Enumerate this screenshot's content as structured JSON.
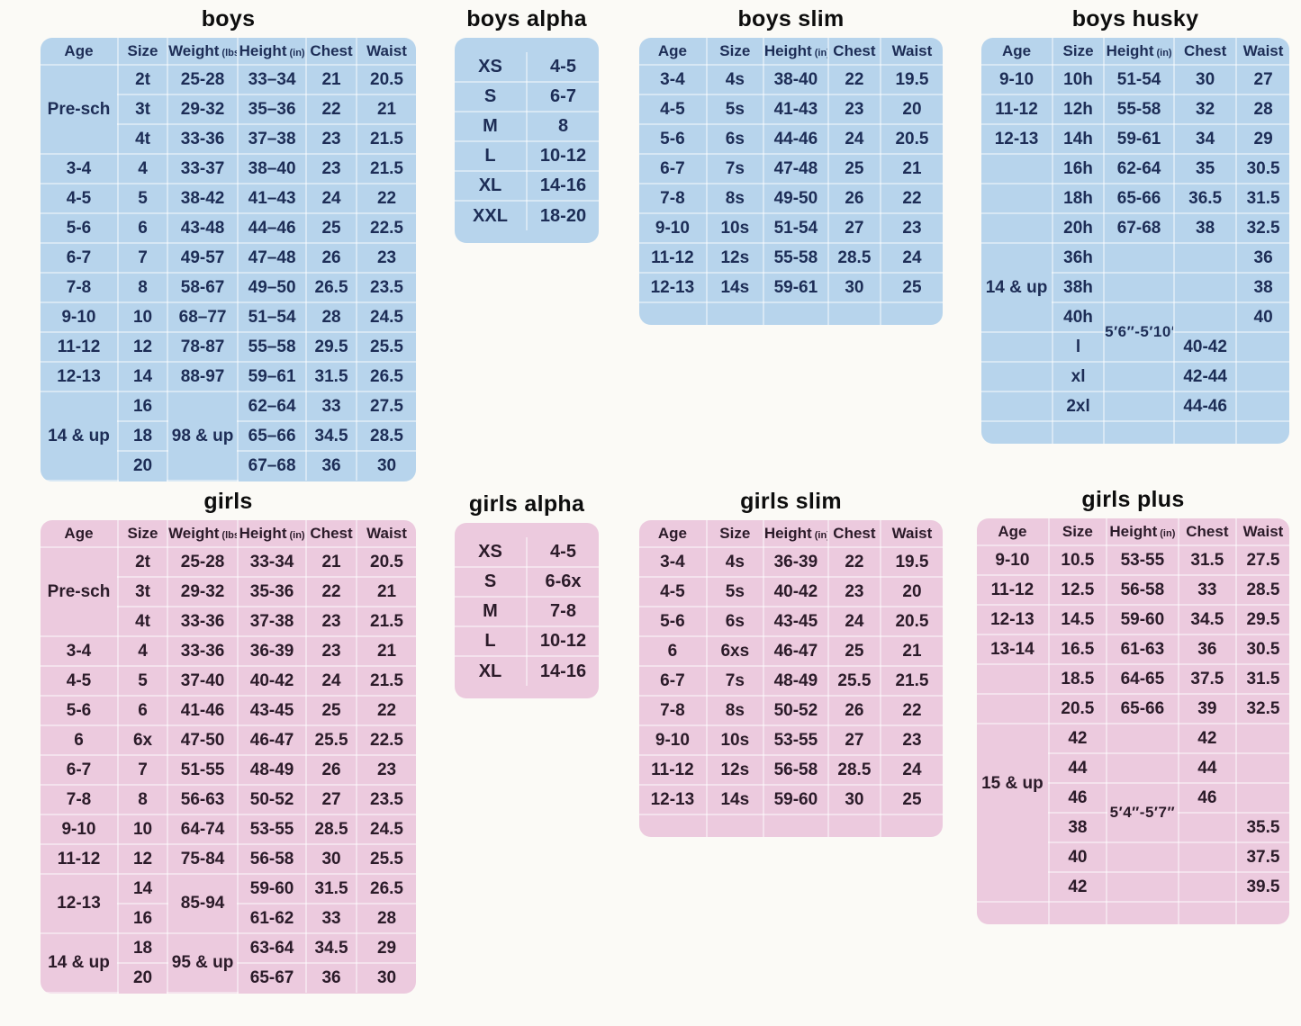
{
  "colors": {
    "page_bg": "#fbfaf6",
    "blue_bg": "#b7d4ec",
    "pink_bg": "#eccade",
    "blue_text": "#1d2d56",
    "pink_text": "#2b1b29",
    "title_text": "#0d0d0d",
    "grid_line": "rgba(255,255,255,0.45)"
  },
  "tables": [
    {
      "id": "boys",
      "title": "boys",
      "theme": "blue",
      "headers": [
        {
          "label": "Age"
        },
        {
          "label": "Size"
        },
        {
          "label": "Weight",
          "unit": "(lbs)"
        },
        {
          "label": "Height",
          "unit": "(in)"
        },
        {
          "label": "Chest"
        },
        {
          "label": "Waist"
        }
      ],
      "rows": [
        [
          {
            "t": "Pre-sch",
            "rs": 3
          },
          "2t",
          "25-28",
          "33–34",
          "21",
          "20.5"
        ],
        [
          "3t",
          "29-32",
          "35–36",
          "22",
          "21"
        ],
        [
          "4t",
          "33-36",
          "37–38",
          "23",
          "21.5"
        ],
        [
          "3-4",
          "4",
          "33-37",
          "38–40",
          "23",
          "21.5"
        ],
        [
          "4-5",
          "5",
          "38-42",
          "41–43",
          "24",
          "22"
        ],
        [
          "5-6",
          "6",
          "43-48",
          "44–46",
          "25",
          "22.5"
        ],
        [
          "6-7",
          "7",
          "49-57",
          "47–48",
          "26",
          "23"
        ],
        [
          "7-8",
          "8",
          "58-67",
          "49–50",
          "26.5",
          "23.5"
        ],
        [
          "9-10",
          "10",
          "68–77",
          "51–54",
          "28",
          "24.5"
        ],
        [
          "11-12",
          "12",
          "78-87",
          "55–58",
          "29.5",
          "25.5"
        ],
        [
          "12-13",
          "14",
          "88-97",
          "59–61",
          "31.5",
          "26.5"
        ],
        [
          {
            "t": "14 & up",
            "rs": 3
          },
          "16",
          {
            "t": "98 & up",
            "rs": 3
          },
          "62–64",
          "33",
          "27.5"
        ],
        [
          "18",
          "65–66",
          "34.5",
          "28.5"
        ],
        [
          "20",
          "67–68",
          "36",
          "30"
        ]
      ]
    },
    {
      "id": "boys-alpha",
      "title": "boys alpha",
      "theme": "blue",
      "rows": [
        [
          "XS",
          "4-5"
        ],
        [
          "S",
          "6-7"
        ],
        [
          "M",
          "8"
        ],
        [
          "L",
          "10-12"
        ],
        [
          "XL",
          "14-16"
        ],
        [
          "XXL",
          "18-20"
        ]
      ]
    },
    {
      "id": "boys-slim",
      "title": "boys slim",
      "theme": "blue",
      "pad_row": true,
      "headers": [
        {
          "label": "Age"
        },
        {
          "label": "Size"
        },
        {
          "label": "Height",
          "unit": "(in)"
        },
        {
          "label": "Chest"
        },
        {
          "label": "Waist"
        }
      ],
      "rows": [
        [
          "3-4",
          "4s",
          "38-40",
          "22",
          "19.5"
        ],
        [
          "4-5",
          "5s",
          "41-43",
          "23",
          "20"
        ],
        [
          "5-6",
          "6s",
          "44-46",
          "24",
          "20.5"
        ],
        [
          "6-7",
          "7s",
          "47-48",
          "25",
          "21"
        ],
        [
          "7-8",
          "8s",
          "49-50",
          "26",
          "22"
        ],
        [
          "9-10",
          "10s",
          "51-54",
          "27",
          "23"
        ],
        [
          "11-12",
          "12s",
          "55-58",
          "28.5",
          "24"
        ],
        [
          "12-13",
          "14s",
          "59-61",
          "30",
          "25"
        ]
      ]
    },
    {
      "id": "boys-husky",
      "title": "boys husky",
      "theme": "blue",
      "pad_row": true,
      "headers": [
        {
          "label": "Age"
        },
        {
          "label": "Size"
        },
        {
          "label": "Height",
          "unit": "(in)"
        },
        {
          "label": "Chest"
        },
        {
          "label": "Waist"
        }
      ],
      "rows": [
        [
          "9-10",
          "10h",
          "51-54",
          "30",
          "27"
        ],
        [
          "11-12",
          "12h",
          "55-58",
          "32",
          "28"
        ],
        [
          "12-13",
          "14h",
          "59-61",
          "34",
          "29"
        ],
        [
          "",
          "16h",
          "62-64",
          "35",
          "30.5"
        ],
        [
          "",
          "18h",
          "65-66",
          "36.5",
          "31.5"
        ],
        [
          "",
          "20h",
          "67-68",
          "38",
          "32.5"
        ],
        [
          {
            "t": "14 & up",
            "rs": 3
          },
          "36h",
          "",
          "",
          "36"
        ],
        [
          "38h",
          "",
          "",
          "38"
        ],
        [
          "40h",
          {
            "t": "5′6″-5′10″",
            "rs": 2,
            "cls": "hnote"
          },
          "",
          "40"
        ],
        [
          "",
          "l",
          "40-42",
          ""
        ],
        [
          "",
          "xl",
          "",
          "42-44",
          ""
        ],
        [
          "",
          "2xl",
          "",
          "44-46",
          ""
        ]
      ]
    },
    {
      "id": "girls",
      "title": "girls",
      "theme": "pink",
      "headers": [
        {
          "label": "Age"
        },
        {
          "label": "Size"
        },
        {
          "label": "Weight",
          "unit": "(lbs)"
        },
        {
          "label": "Height",
          "unit": "(in)"
        },
        {
          "label": "Chest"
        },
        {
          "label": "Waist"
        }
      ],
      "rows": [
        [
          {
            "t": "Pre-sch",
            "rs": 3
          },
          "2t",
          "25-28",
          "33-34",
          "21",
          "20.5"
        ],
        [
          "3t",
          "29-32",
          "35-36",
          "22",
          "21"
        ],
        [
          "4t",
          "33-36",
          "37-38",
          "23",
          "21.5"
        ],
        [
          "3-4",
          "4",
          "33-36",
          "36-39",
          "23",
          "21"
        ],
        [
          "4-5",
          "5",
          "37-40",
          "40-42",
          "24",
          "21.5"
        ],
        [
          "5-6",
          "6",
          "41-46",
          "43-45",
          "25",
          "22"
        ],
        [
          "6",
          "6x",
          "47-50",
          "46-47",
          "25.5",
          "22.5"
        ],
        [
          "6-7",
          "7",
          "51-55",
          "48-49",
          "26",
          "23"
        ],
        [
          "7-8",
          "8",
          "56-63",
          "50-52",
          "27",
          "23.5"
        ],
        [
          "9-10",
          "10",
          "64-74",
          "53-55",
          "28.5",
          "24.5"
        ],
        [
          "11-12",
          "12",
          "75-84",
          "56-58",
          "30",
          "25.5"
        ],
        [
          {
            "t": "12-13",
            "rs": 2
          },
          "14",
          {
            "t": "85-94",
            "rs": 2
          },
          "59-60",
          "31.5",
          "26.5"
        ],
        [
          "16",
          "61-62",
          "33",
          "28"
        ],
        [
          {
            "t": "14 & up",
            "rs": 2
          },
          "18",
          {
            "t": "95 & up",
            "rs": 2
          },
          "63-64",
          "34.5",
          "29"
        ],
        [
          "20",
          "65-67",
          "36",
          "30"
        ]
      ]
    },
    {
      "id": "girls-alpha",
      "title": "girls alpha",
      "theme": "pink",
      "rows": [
        [
          "XS",
          "4-5"
        ],
        [
          "S",
          "6-6x"
        ],
        [
          "M",
          "7-8"
        ],
        [
          "L",
          "10-12"
        ],
        [
          "XL",
          "14-16"
        ]
      ]
    },
    {
      "id": "girls-slim",
      "title": "girls slim",
      "theme": "pink",
      "pad_row": true,
      "headers": [
        {
          "label": "Age"
        },
        {
          "label": "Size"
        },
        {
          "label": "Height",
          "unit": "(in)"
        },
        {
          "label": "Chest"
        },
        {
          "label": "Waist"
        }
      ],
      "rows": [
        [
          "3-4",
          "4s",
          "36-39",
          "22",
          "19.5"
        ],
        [
          "4-5",
          "5s",
          "40-42",
          "23",
          "20"
        ],
        [
          "5-6",
          "6s",
          "43-45",
          "24",
          "20.5"
        ],
        [
          "6",
          "6xs",
          "46-47",
          "25",
          "21"
        ],
        [
          "6-7",
          "7s",
          "48-49",
          "25.5",
          "21.5"
        ],
        [
          "7-8",
          "8s",
          "50-52",
          "26",
          "22"
        ],
        [
          "9-10",
          "10s",
          "53-55",
          "27",
          "23"
        ],
        [
          "11-12",
          "12s",
          "56-58",
          "28.5",
          "24"
        ],
        [
          "12-13",
          "14s",
          "59-60",
          "30",
          "25"
        ]
      ]
    },
    {
      "id": "girls-plus",
      "title": "girls plus",
      "theme": "pink",
      "pad_row": true,
      "headers": [
        {
          "label": "Age"
        },
        {
          "label": "Size"
        },
        {
          "label": "Height",
          "unit": "(in)"
        },
        {
          "label": "Chest"
        },
        {
          "label": "Waist"
        }
      ],
      "rows": [
        [
          "9-10",
          "10.5",
          "53-55",
          "31.5",
          "27.5"
        ],
        [
          "11-12",
          "12.5",
          "56-58",
          "33",
          "28.5"
        ],
        [
          "12-13",
          "14.5",
          "59-60",
          "34.5",
          "29.5"
        ],
        [
          "13-14",
          "16.5",
          "61-63",
          "36",
          "30.5"
        ],
        [
          "",
          "18.5",
          "64-65",
          "37.5",
          "31.5"
        ],
        [
          "",
          "20.5",
          "65-66",
          "39",
          "32.5"
        ],
        [
          {
            "t": "15 & up",
            "rs": 6,
            "cls": "vnudge"
          },
          "42",
          "",
          "42",
          ""
        ],
        [
          "44",
          "",
          "44",
          ""
        ],
        [
          "46",
          {
            "t": "5′4″-5′7″",
            "rs": 2,
            "cls": "hnote"
          },
          "46",
          ""
        ],
        [
          "38",
          "",
          "35.5"
        ],
        [
          "40",
          "",
          "",
          "37.5"
        ],
        [
          "42",
          "",
          "",
          "39.5"
        ]
      ]
    }
  ]
}
